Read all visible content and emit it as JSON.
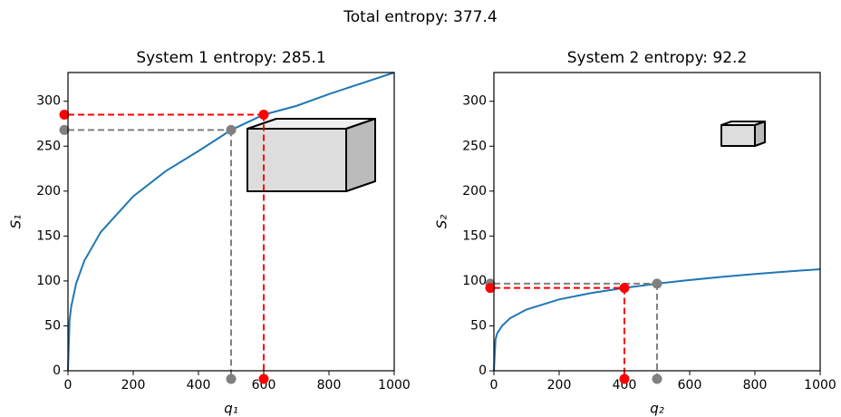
{
  "title": "Total entropy: 377.4",
  "chart_data": [
    {
      "type": "line",
      "title": "System 1 entropy: 285.1",
      "xlabel": "q₁",
      "ylabel": "S₁",
      "x": [
        0,
        5,
        10,
        25,
        50,
        100,
        200,
        300,
        400,
        500,
        600,
        700,
        800,
        900,
        1000
      ],
      "series": [
        {
          "color": "#1f77b4",
          "values": [
            0,
            56.8,
            71.5,
            97.1,
            122.3,
            154.1,
            194.2,
            222.3,
            244.6,
            268,
            285.1,
            294.8,
            308,
            320,
            332
          ]
        }
      ],
      "xlim": [
        0,
        1000
      ],
      "ylim": [
        0,
        332
      ],
      "xticks": [
        0,
        200,
        400,
        600,
        800,
        1000
      ],
      "yticks": [
        0,
        50,
        100,
        150,
        200,
        250,
        300
      ],
      "markers": [
        {
          "x": 500,
          "y": 268,
          "color": "#808080"
        },
        {
          "x": 600,
          "y": 285.1,
          "color": "#ff0000"
        }
      ]
    },
    {
      "type": "line",
      "title": "System 2 entropy: 92.2",
      "xlabel": "q₂",
      "ylabel": "S₂",
      "x": [
        0,
        5,
        10,
        25,
        50,
        100,
        200,
        300,
        400,
        500,
        600,
        700,
        800,
        900,
        1000
      ],
      "series": [
        {
          "color": "#1f77b4",
          "values": [
            0,
            35,
            41.6,
            50,
            58.6,
            68.2,
            79.4,
            86.7,
            92.2,
            97,
            101,
            104.6,
            107.7,
            110.5,
            113
          ]
        }
      ],
      "xlim": [
        0,
        1000
      ],
      "ylim": [
        0,
        332
      ],
      "xticks": [
        0,
        200,
        400,
        600,
        800,
        1000
      ],
      "yticks": [
        0,
        50,
        100,
        150,
        200,
        250,
        300
      ],
      "markers": [
        {
          "x": 500,
          "y": 97,
          "color": "#808080"
        },
        {
          "x": 400,
          "y": 92.2,
          "color": "#ff0000"
        }
      ]
    }
  ]
}
